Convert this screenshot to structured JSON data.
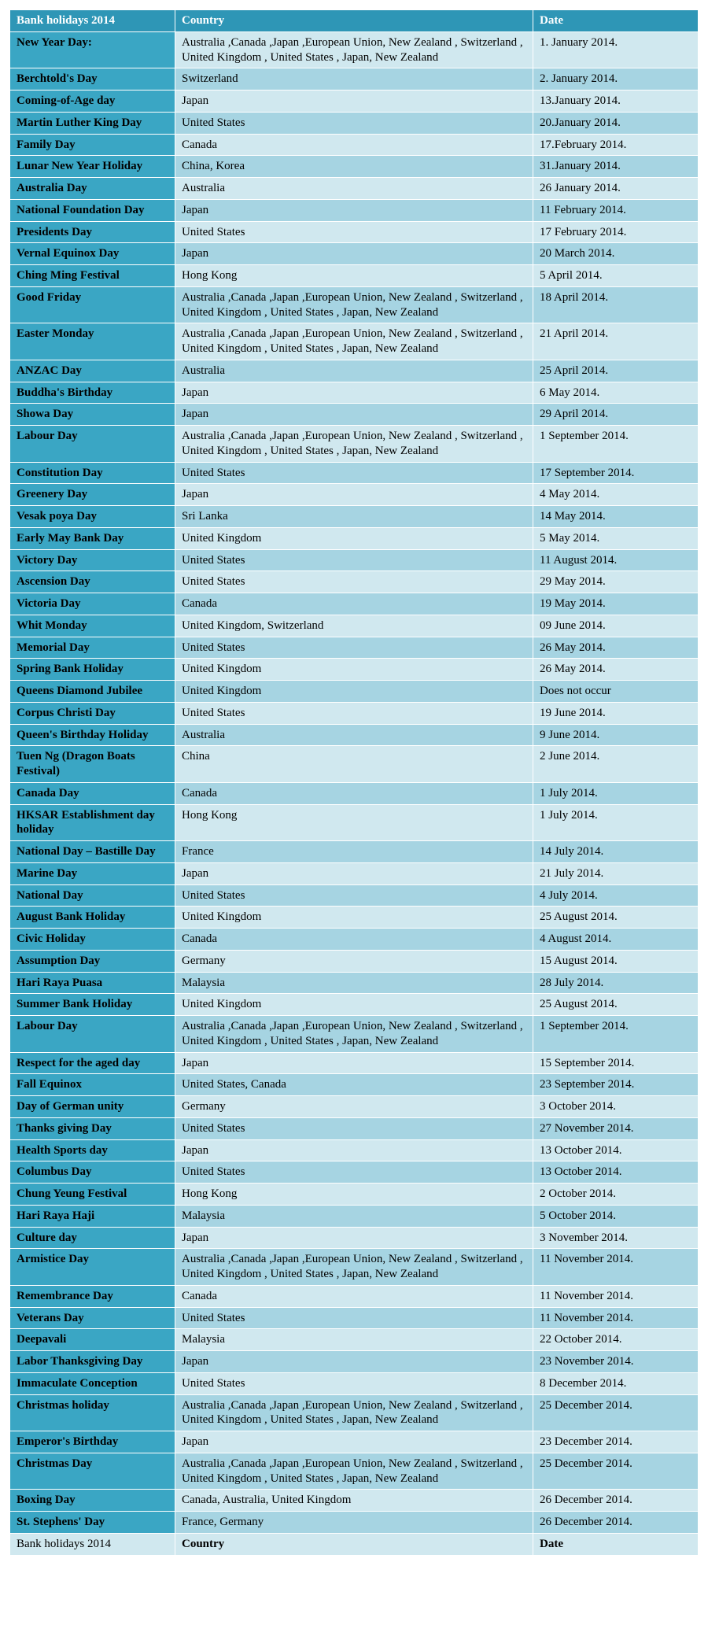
{
  "colors": {
    "header_bg": "#2e96b6",
    "header_fg": "#ffffff",
    "name_col_bg": "#3aa6c4",
    "row_a_bg": "#d0e8ef",
    "row_b_bg": "#a6d4e2",
    "border": "#ffffff",
    "text": "#000000"
  },
  "typography": {
    "family": "Times New Roman",
    "size_pt": 11
  },
  "columns": [
    "Bank holidays 2014",
    "Country",
    "Date"
  ],
  "footer": [
    "Bank holidays 2014",
    "Country",
    "Date"
  ],
  "rows": [
    {
      "name": "New Year Day:",
      "country": "Australia ,Canada ,Japan ,European Union, New Zealand , Switzerland , United Kingdom , United States , Japan, New Zealand",
      "date": "1. January 2014."
    },
    {
      "name": "Berchtold's Day",
      "country": "Switzerland",
      "date": "2. January 2014."
    },
    {
      "name": "Coming-of-Age day",
      "country": "Japan",
      "date": "13.January 2014."
    },
    {
      "name": "Martin Luther King Day",
      "country": "United States",
      "date": "20.January 2014."
    },
    {
      "name": "Family Day",
      "country": "Canada",
      "date": "17.February 2014."
    },
    {
      "name": "Lunar New Year Holiday",
      "country": "China, Korea",
      "date": "31.January 2014."
    },
    {
      "name": "Australia Day",
      "country": "Australia",
      "date": "26 January 2014."
    },
    {
      "name": "National Foundation Day",
      "country": "Japan",
      "date": "11 February 2014."
    },
    {
      "name": "Presidents Day",
      "country": "United States",
      "date": "17 February 2014."
    },
    {
      "name": "Vernal Equinox Day",
      "country": "Japan",
      "date": "20 March 2014."
    },
    {
      "name": "Ching Ming Festival",
      "country": "Hong Kong",
      "date": "5 April 2014."
    },
    {
      "name": "Good Friday",
      "country": "Australia ,Canada ,Japan ,European Union, New Zealand , Switzerland , United Kingdom , United States , Japan, New Zealand",
      "date": "18 April 2014."
    },
    {
      "name": "Easter Monday",
      "country": "Australia ,Canada ,Japan ,European Union, New Zealand , Switzerland , United Kingdom , United States , Japan, New Zealand",
      "date": "21 April 2014."
    },
    {
      "name": "ANZAC Day",
      "country": "Australia",
      "date": "25 April 2014."
    },
    {
      "name": "Buddha's Birthday",
      "country": "Japan",
      "date": "6 May 2014."
    },
    {
      "name": "Showa Day",
      "country": "Japan",
      "date": "29 April 2014."
    },
    {
      "name": "Labour Day",
      "country": "Australia ,Canada ,Japan ,European Union, New Zealand , Switzerland , United Kingdom , United States , Japan, New Zealand",
      "date": "1 September 2014."
    },
    {
      "name": "Constitution Day",
      "country": "United States",
      "date": "17 September 2014."
    },
    {
      "name": "Greenery Day",
      "country": "Japan",
      "date": "4 May 2014."
    },
    {
      "name": "Vesak poya Day",
      "country": "Sri Lanka",
      "date": "14 May 2014."
    },
    {
      "name": "Early May Bank Day",
      "country": "United Kingdom",
      "date": "5 May 2014."
    },
    {
      "name": "Victory Day",
      "country": "United States",
      "date": "11 August 2014."
    },
    {
      "name": "Ascension Day",
      "country": "United States",
      "date": "29 May 2014."
    },
    {
      "name": "Victoria Day",
      "country": "Canada",
      "date": "19 May 2014."
    },
    {
      "name": "Whit Monday",
      "country": "United Kingdom, Switzerland",
      "date": "09 June 2014."
    },
    {
      "name": "Memorial Day",
      "country": "United States",
      "date": "26 May 2014."
    },
    {
      "name": "Spring Bank Holiday",
      "country": "United Kingdom",
      "date": "26 May 2014."
    },
    {
      "name": "Queens Diamond Jubilee",
      "country": "United Kingdom",
      "date": "Does not occur"
    },
    {
      "name": "Corpus Christi Day",
      "country": "United States",
      "date": "19 June 2014."
    },
    {
      "name": "Queen's Birthday Holiday",
      "country": "Australia",
      "date": "9 June 2014."
    },
    {
      "name": "Tuen Ng (Dragon Boats Festival)",
      "country": "China",
      "date": "2 June 2014."
    },
    {
      "name": "Canada Day",
      "country": "Canada",
      "date": "1 July 2014."
    },
    {
      "name": "HKSAR Establishment day holiday",
      "country": "Hong Kong",
      "date": "1 July 2014."
    },
    {
      "name": "National Day – Bastille Day",
      "country": "France",
      "date": "14 July 2014."
    },
    {
      "name": "Marine Day",
      "country": "Japan",
      "date": "21 July 2014."
    },
    {
      "name": "National Day",
      "country": "United States",
      "date": "4 July 2014."
    },
    {
      "name": "August Bank Holiday",
      "country": "United Kingdom",
      "date": "25 August 2014."
    },
    {
      "name": "Civic Holiday",
      "country": "Canada",
      "date": "4 August 2014."
    },
    {
      "name": "Assumption Day",
      "country": "Germany",
      "date": "15 August 2014."
    },
    {
      "name": "Hari Raya Puasa",
      "country": "Malaysia",
      "date": "28 July 2014."
    },
    {
      "name": "Summer Bank Holiday",
      "country": "United Kingdom",
      "date": "25 August 2014."
    },
    {
      "name": "Labour Day",
      "country": "Australia ,Canada ,Japan ,European Union, New Zealand , Switzerland , United Kingdom , United States , Japan, New Zealand",
      "date": "1 September 2014."
    },
    {
      "name": "Respect for the aged day",
      "country": "Japan",
      "date": "15 September 2014."
    },
    {
      "name": "Fall Equinox",
      "country": "United States, Canada",
      "date": "23 September 2014."
    },
    {
      "name": "Day of German unity",
      "country": "Germany",
      "date": "3 October 2014."
    },
    {
      "name": "Thanks giving Day",
      "country": "United States",
      "date": "27 November 2014."
    },
    {
      "name": "Health Sports day",
      "country": "Japan",
      "date": "13 October 2014."
    },
    {
      "name": "Columbus Day",
      "country": "United States",
      "date": "13 October 2014."
    },
    {
      "name": "Chung Yeung Festival",
      "country": "Hong Kong",
      "date": "2 October 2014."
    },
    {
      "name": "Hari Raya Haji",
      "country": "Malaysia",
      "date": "5 October 2014."
    },
    {
      "name": "Culture day",
      "country": "Japan",
      "date": "3 November 2014."
    },
    {
      "name": "Armistice Day",
      "country": "Australia ,Canada ,Japan ,European Union, New Zealand , Switzerland , United Kingdom , United States , Japan, New Zealand",
      "date": "11 November 2014."
    },
    {
      "name": "Remembrance Day",
      "country": "Canada",
      "date": "11 November 2014."
    },
    {
      "name": "Veterans Day",
      "country": "United States",
      "date": "11 November 2014."
    },
    {
      "name": "Deepavali",
      "country": "Malaysia",
      "date": "22 October 2014."
    },
    {
      "name": "Labor Thanksgiving Day",
      "country": "Japan",
      "date": "23 November 2014."
    },
    {
      "name": "Immaculate Conception",
      "country": "United States",
      "date": "8 December 2014."
    },
    {
      "name": "Christmas holiday",
      "country": "Australia ,Canada ,Japan ,European Union, New Zealand , Switzerland , United Kingdom , United States , Japan, New Zealand",
      "date": "25 December 2014."
    },
    {
      "name": "Emperor's Birthday",
      "country": "Japan",
      "date": "23 December 2014."
    },
    {
      "name": "Christmas Day",
      "country": "Australia ,Canada ,Japan ,European Union, New Zealand , Switzerland , United Kingdom , United States , Japan, New Zealand",
      "date": "25 December 2014."
    },
    {
      "name": "Boxing Day",
      "country": "Canada, Australia, United Kingdom",
      "date": "26 December 2014."
    },
    {
      "name": "St. Stephens' Day",
      "country": "France, Germany",
      "date": "26 December 2014."
    }
  ]
}
